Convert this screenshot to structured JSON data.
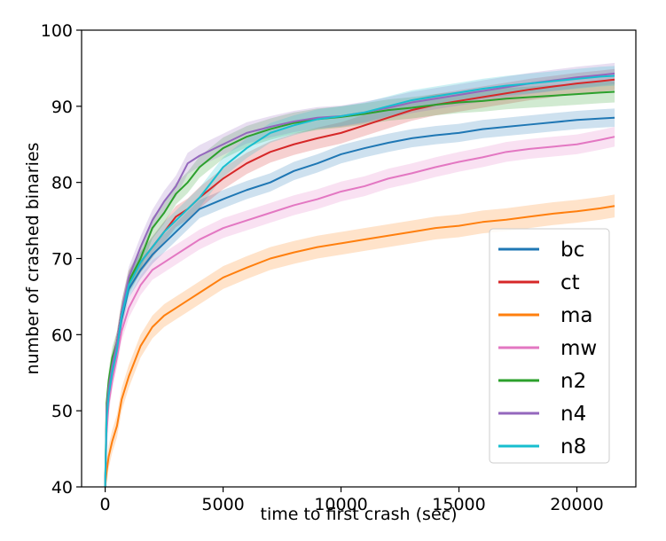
{
  "chart_data": {
    "type": "line",
    "title": "",
    "xlabel": "time to first crash (sec)",
    "ylabel": "number of crashed binaries",
    "xlim": [
      -1000,
      22500
    ],
    "ylim": [
      40,
      100
    ],
    "xticks": [
      0,
      5000,
      10000,
      15000,
      20000
    ],
    "yticks": [
      40,
      50,
      60,
      70,
      80,
      90,
      100
    ],
    "grid": false,
    "legend_position": "lower-right",
    "series": [
      {
        "name": "bc",
        "color": "#1f77b4",
        "band": 1.2,
        "x": [
          0,
          60,
          150,
          300,
          500,
          700,
          1000,
          1500,
          2000,
          2500,
          3000,
          3500,
          4000,
          5000,
          6000,
          7000,
          8000,
          9000,
          10000,
          11000,
          12000,
          13000,
          14000,
          15000,
          16000,
          17000,
          18000,
          19000,
          20000,
          21000,
          21600
        ],
        "y": [
          40,
          48,
          52,
          55,
          58,
          62,
          66,
          68.5,
          70.5,
          72,
          73.5,
          75,
          76.5,
          77.8,
          79,
          80,
          81.5,
          82.5,
          83.7,
          84.5,
          85.2,
          85.8,
          86.2,
          86.5,
          87,
          87.3,
          87.6,
          87.9,
          88.2,
          88.4,
          88.5
        ]
      },
      {
        "name": "ct",
        "color": "#d62728",
        "band": 1.4,
        "x": [
          0,
          60,
          150,
          300,
          500,
          700,
          1000,
          1500,
          2000,
          2500,
          3000,
          3500,
          4000,
          5000,
          6000,
          7000,
          8000,
          9000,
          10000,
          11000,
          12000,
          13000,
          14000,
          15000,
          16000,
          17000,
          18000,
          19000,
          20000,
          21000,
          21600
        ],
        "y": [
          40,
          49,
          53,
          56,
          59,
          63,
          67,
          69.5,
          71.5,
          73.5,
          75.5,
          76.5,
          78,
          80.5,
          82.5,
          84,
          85,
          85.8,
          86.5,
          87.5,
          88.5,
          89.5,
          90.2,
          90.7,
          91.2,
          91.7,
          92.2,
          92.6,
          93,
          93.3,
          93.5
        ]
      },
      {
        "name": "ma",
        "color": "#ff7f0e",
        "band": 1.5,
        "x": [
          0,
          60,
          150,
          300,
          500,
          700,
          1000,
          1500,
          2000,
          2500,
          3000,
          3500,
          4000,
          5000,
          6000,
          7000,
          8000,
          9000,
          10000,
          11000,
          12000,
          13000,
          14000,
          15000,
          16000,
          17000,
          18000,
          19000,
          20000,
          21000,
          21600
        ],
        "y": [
          40,
          42,
          44,
          46,
          48,
          51.5,
          54.5,
          58.5,
          61,
          62.5,
          63.5,
          64.5,
          65.5,
          67.5,
          68.8,
          70,
          70.8,
          71.5,
          72,
          72.5,
          73,
          73.5,
          74,
          74.3,
          74.8,
          75.1,
          75.5,
          75.9,
          76.2,
          76.6,
          76.9
        ]
      },
      {
        "name": "mw",
        "color": "#e377c2",
        "band": 1.3,
        "x": [
          0,
          60,
          150,
          300,
          500,
          700,
          1000,
          1500,
          2000,
          2500,
          3000,
          3500,
          4000,
          5000,
          6000,
          7000,
          8000,
          9000,
          10000,
          11000,
          12000,
          13000,
          14000,
          15000,
          16000,
          17000,
          18000,
          19000,
          20000,
          21000,
          21600
        ],
        "y": [
          40,
          47,
          51,
          54,
          57,
          60.5,
          63.5,
          66.5,
          68.5,
          69.5,
          70.5,
          71.5,
          72.5,
          74,
          75,
          76,
          77,
          77.8,
          78.8,
          79.5,
          80.5,
          81.2,
          82,
          82.7,
          83.3,
          84,
          84.4,
          84.7,
          85,
          85.6,
          86
        ]
      },
      {
        "name": "n2",
        "color": "#2ca02c",
        "band": 1.4,
        "x": [
          0,
          60,
          150,
          300,
          500,
          700,
          1000,
          1500,
          2000,
          2500,
          3000,
          3500,
          4000,
          5000,
          6000,
          7000,
          8000,
          9000,
          10000,
          11000,
          12000,
          13000,
          14000,
          15000,
          16000,
          17000,
          18000,
          19000,
          20000,
          21000,
          21600
        ],
        "y": [
          40,
          51,
          54,
          57,
          59,
          63,
          67,
          70,
          74,
          76,
          78.5,
          80,
          82,
          84.5,
          86,
          87,
          87.8,
          88.3,
          88.6,
          89,
          89.5,
          89.8,
          90.2,
          90.5,
          90.7,
          91,
          91.2,
          91.4,
          91.6,
          91.8,
          91.9
        ]
      },
      {
        "name": "n4",
        "color": "#9467bd",
        "band": 1.4,
        "x": [
          0,
          60,
          150,
          300,
          500,
          700,
          1000,
          1500,
          2000,
          2500,
          3000,
          3500,
          4000,
          5000,
          6000,
          7000,
          8000,
          9000,
          10000,
          11000,
          12000,
          13000,
          14000,
          15000,
          16000,
          17000,
          18000,
          19000,
          20000,
          21000,
          21600
        ],
        "y": [
          40,
          50,
          53,
          56,
          59,
          63,
          67.5,
          71.5,
          75,
          77.5,
          79.5,
          82.5,
          83.5,
          85,
          86.5,
          87.3,
          88,
          88.5,
          88.7,
          89.2,
          89.8,
          90.5,
          91,
          91.5,
          92,
          92.5,
          93,
          93.4,
          93.8,
          94.1,
          94.3
        ]
      },
      {
        "name": "n8",
        "color": "#17becf",
        "band": 1.3,
        "x": [
          0,
          60,
          150,
          300,
          500,
          700,
          1000,
          1500,
          2000,
          2500,
          3000,
          3500,
          4000,
          5000,
          6000,
          7000,
          8000,
          9000,
          10000,
          11000,
          12000,
          13000,
          14000,
          15000,
          16000,
          17000,
          18000,
          19000,
          20000,
          21000,
          21600
        ],
        "y": [
          40,
          49,
          52,
          55,
          58,
          62.5,
          66.5,
          69.5,
          71.5,
          73.5,
          75,
          76.5,
          78,
          82,
          84.5,
          86.5,
          87.5,
          88.3,
          88.7,
          89.2,
          90,
          90.8,
          91.3,
          91.8,
          92.3,
          92.7,
          93,
          93.3,
          93.6,
          93.9,
          94
        ]
      }
    ]
  }
}
